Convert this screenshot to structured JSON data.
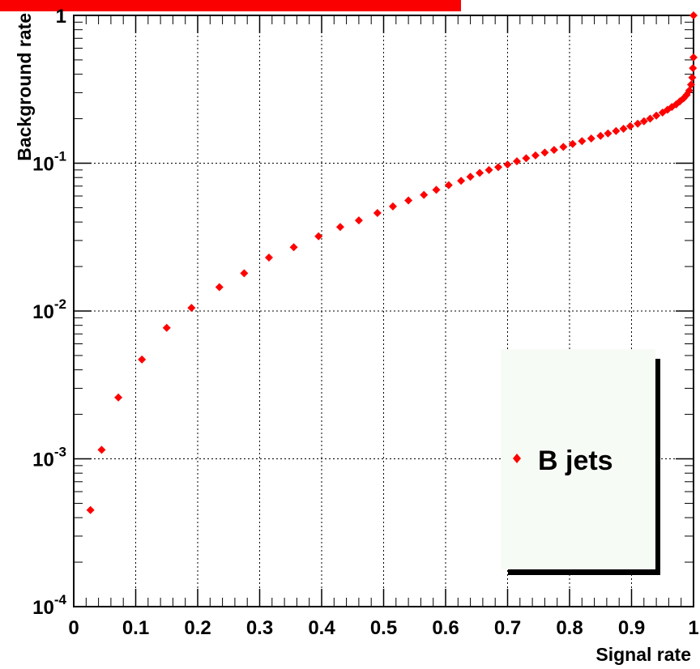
{
  "title_banner": {
    "text": "",
    "color": "#fb0000"
  },
  "chart_data": {
    "type": "scatter",
    "title": "",
    "xlabel": "Signal rate",
    "ylabel": "Background rate",
    "xlim": [
      0,
      1
    ],
    "ylim": [
      0.0001,
      1
    ],
    "y_scale": "log",
    "grid": true,
    "x_ticks": [
      "0",
      "0.1",
      "0.2",
      "0.3",
      "0.4",
      "0.5",
      "0.6",
      "0.7",
      "0.8",
      "0.9",
      "1"
    ],
    "y_ticks": [
      {
        "value": 0.0001,
        "base": "10",
        "exp": "-4"
      },
      {
        "value": 0.001,
        "base": "10",
        "exp": "-3"
      },
      {
        "value": 0.01,
        "base": "10",
        "exp": "-2"
      },
      {
        "value": 0.1,
        "base": "10",
        "exp": "-1"
      },
      {
        "value": 1,
        "base": "1",
        "exp": ""
      }
    ],
    "legend": {
      "position": "bottom-right",
      "label": "B jets"
    },
    "marker_color": "#ff0000",
    "series": [
      {
        "name": "B jets",
        "x": [
          0.027,
          0.045,
          0.072,
          0.11,
          0.15,
          0.19,
          0.235,
          0.275,
          0.315,
          0.355,
          0.395,
          0.43,
          0.46,
          0.49,
          0.515,
          0.54,
          0.565,
          0.585,
          0.605,
          0.625,
          0.64,
          0.655,
          0.67,
          0.685,
          0.7,
          0.715,
          0.73,
          0.745,
          0.76,
          0.775,
          0.79,
          0.805,
          0.82,
          0.835,
          0.85,
          0.862,
          0.875,
          0.887,
          0.898,
          0.91,
          0.92,
          0.93,
          0.94,
          0.95,
          0.958,
          0.965,
          0.972,
          0.978,
          0.984,
          0.989,
          0.993,
          0.996,
          0.998,
          0.999,
          1.0,
          1.0
        ],
        "y": [
          0.00045,
          0.00115,
          0.0026,
          0.0047,
          0.0077,
          0.0105,
          0.0145,
          0.018,
          0.023,
          0.027,
          0.032,
          0.037,
          0.041,
          0.046,
          0.051,
          0.056,
          0.061,
          0.066,
          0.071,
          0.076,
          0.081,
          0.086,
          0.09,
          0.094,
          0.098,
          0.103,
          0.108,
          0.113,
          0.118,
          0.123,
          0.129,
          0.135,
          0.141,
          0.147,
          0.153,
          0.159,
          0.165,
          0.171,
          0.178,
          0.185,
          0.192,
          0.2,
          0.21,
          0.22,
          0.23,
          0.24,
          0.25,
          0.262,
          0.275,
          0.29,
          0.31,
          0.34,
          0.38,
          0.44,
          0.52,
          1.0
        ]
      }
    ]
  }
}
